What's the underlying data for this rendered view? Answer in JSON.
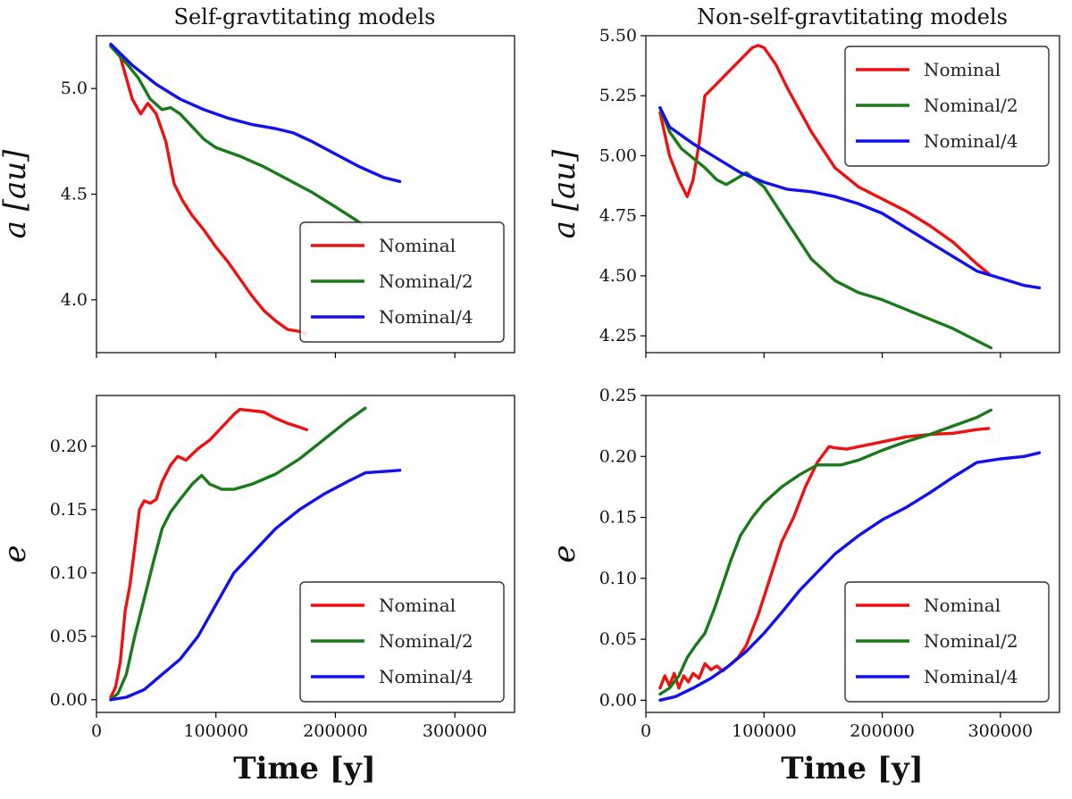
{
  "colors": {
    "Nominal": "#ee1111",
    "Nominal/2": "#1a7a1a",
    "Nominal/4": "#1111ee"
  },
  "titles": [
    "Self-gravtitating models",
    "Non-self-gravtitating models"
  ],
  "xlabel": "Time [y]",
  "chart_data": [
    {
      "type": "line",
      "title": "Self-gravtitating models",
      "ylabel": "a [au]",
      "xlim": [
        0,
        350000
      ],
      "ylim": [
        3.75,
        5.25
      ],
      "xticks": [
        0,
        100000,
        200000,
        300000
      ],
      "yticks": [
        4.0,
        4.5,
        5.0
      ],
      "ytick_labels": [
        "4.0",
        "4.5",
        "5.0"
      ],
      "legend": "lower-right",
      "series": [
        {
          "name": "Nominal",
          "x": [
            12000,
            20000,
            30000,
            37000,
            43000,
            50000,
            58000,
            65000,
            72000,
            80000,
            90000,
            100000,
            110000,
            120000,
            130000,
            140000,
            150000,
            160000,
            170000,
            175000
          ],
          "y": [
            5.2,
            5.15,
            4.95,
            4.88,
            4.93,
            4.88,
            4.75,
            4.55,
            4.47,
            4.4,
            4.33,
            4.25,
            4.18,
            4.1,
            4.02,
            3.95,
            3.9,
            3.86,
            3.85,
            3.84
          ]
        },
        {
          "name": "Nominal/2",
          "x": [
            12000,
            25000,
            35000,
            45000,
            55000,
            62000,
            70000,
            80000,
            90000,
            100000,
            120000,
            140000,
            160000,
            180000,
            200000,
            222000
          ],
          "y": [
            5.2,
            5.12,
            5.05,
            4.95,
            4.9,
            4.91,
            4.88,
            4.82,
            4.76,
            4.72,
            4.68,
            4.63,
            4.57,
            4.51,
            4.44,
            4.36
          ]
        },
        {
          "name": "Nominal/4",
          "x": [
            12000,
            30000,
            50000,
            70000,
            90000,
            110000,
            130000,
            150000,
            165000,
            180000,
            200000,
            220000,
            240000,
            254000
          ],
          "y": [
            5.21,
            5.11,
            5.02,
            4.95,
            4.9,
            4.86,
            4.83,
            4.81,
            4.79,
            4.75,
            4.69,
            4.63,
            4.58,
            4.56
          ]
        }
      ]
    },
    {
      "type": "line",
      "title": "Non-self-gravtitating models",
      "ylabel": "a [au]",
      "xlim": [
        0,
        350000
      ],
      "ylim": [
        4.18,
        5.5
      ],
      "xticks": [
        0,
        100000,
        200000,
        300000
      ],
      "yticks": [
        4.25,
        4.5,
        4.75,
        5.0,
        5.25,
        5.5
      ],
      "ytick_labels": [
        "4.25",
        "4.50",
        "4.75",
        "5.00",
        "5.25",
        "5.50"
      ],
      "legend": "top-right",
      "series": [
        {
          "name": "Nominal",
          "x": [
            12000,
            20000,
            28000,
            35000,
            40000,
            45000,
            50000,
            60000,
            70000,
            80000,
            90000,
            95000,
            100000,
            110000,
            120000,
            140000,
            160000,
            180000,
            200000,
            220000,
            240000,
            260000,
            280000,
            290000
          ],
          "y": [
            5.18,
            5.0,
            4.9,
            4.83,
            4.9,
            5.05,
            5.25,
            5.3,
            5.35,
            5.4,
            5.45,
            5.46,
            5.45,
            5.38,
            5.28,
            5.1,
            4.95,
            4.87,
            4.82,
            4.77,
            4.71,
            4.64,
            4.55,
            4.51
          ]
        },
        {
          "name": "Nominal/2",
          "x": [
            12000,
            20000,
            30000,
            40000,
            50000,
            60000,
            68000,
            75000,
            85000,
            100000,
            120000,
            140000,
            160000,
            180000,
            200000,
            220000,
            240000,
            260000,
            280000,
            292000
          ],
          "y": [
            5.2,
            5.1,
            5.03,
            4.99,
            4.95,
            4.9,
            4.88,
            4.9,
            4.93,
            4.87,
            4.72,
            4.57,
            4.48,
            4.43,
            4.4,
            4.36,
            4.32,
            4.28,
            4.23,
            4.2
          ]
        },
        {
          "name": "Nominal/4",
          "x": [
            12000,
            20000,
            40000,
            60000,
            80000,
            100000,
            120000,
            140000,
            160000,
            180000,
            200000,
            220000,
            240000,
            260000,
            280000,
            300000,
            320000,
            333000
          ],
          "y": [
            5.2,
            5.12,
            5.05,
            4.99,
            4.93,
            4.89,
            4.86,
            4.85,
            4.83,
            4.8,
            4.76,
            4.7,
            4.64,
            4.58,
            4.52,
            4.49,
            4.46,
            4.45
          ]
        }
      ]
    },
    {
      "type": "line",
      "ylabel": "e",
      "xlim": [
        0,
        350000
      ],
      "ylim": [
        -0.01,
        0.24
      ],
      "xticks": [
        0,
        100000,
        200000,
        300000
      ],
      "xtick_labels": [
        "0",
        "100000",
        "200000",
        "300000"
      ],
      "yticks": [
        0.0,
        0.05,
        0.1,
        0.15,
        0.2
      ],
      "ytick_labels": [
        "0.00",
        "0.05",
        "0.10",
        "0.15",
        "0.20"
      ],
      "legend": "lower-right",
      "series": [
        {
          "name": "Nominal",
          "x": [
            12000,
            16000,
            20000,
            24000,
            28000,
            32000,
            36000,
            40000,
            45000,
            50000,
            55000,
            62000,
            68000,
            75000,
            85000,
            95000,
            105000,
            115000,
            120000,
            130000,
            140000,
            150000,
            160000,
            170000,
            176000
          ],
          "y": [
            0.002,
            0.01,
            0.03,
            0.07,
            0.09,
            0.12,
            0.15,
            0.157,
            0.155,
            0.158,
            0.172,
            0.185,
            0.192,
            0.189,
            0.198,
            0.205,
            0.215,
            0.225,
            0.229,
            0.228,
            0.227,
            0.222,
            0.218,
            0.215,
            0.213
          ]
        },
        {
          "name": "Nominal/2",
          "x": [
            12000,
            18000,
            25000,
            32000,
            40000,
            48000,
            55000,
            62000,
            70000,
            80000,
            88000,
            95000,
            105000,
            115000,
            130000,
            150000,
            170000,
            190000,
            210000,
            225000
          ],
          "y": [
            0.0,
            0.005,
            0.02,
            0.05,
            0.08,
            0.11,
            0.135,
            0.148,
            0.158,
            0.17,
            0.177,
            0.17,
            0.166,
            0.166,
            0.17,
            0.178,
            0.19,
            0.205,
            0.22,
            0.23
          ]
        },
        {
          "name": "Nominal/4",
          "x": [
            12000,
            25000,
            40000,
            55000,
            70000,
            85000,
            100000,
            115000,
            135000,
            150000,
            170000,
            190000,
            210000,
            225000,
            240000,
            254000
          ],
          "y": [
            0.0,
            0.002,
            0.008,
            0.02,
            0.032,
            0.05,
            0.075,
            0.1,
            0.12,
            0.135,
            0.15,
            0.162,
            0.172,
            0.179,
            0.18,
            0.181
          ]
        }
      ]
    },
    {
      "type": "line",
      "ylabel": "e",
      "xlim": [
        0,
        350000
      ],
      "ylim": [
        -0.01,
        0.25
      ],
      "xticks": [
        0,
        100000,
        200000,
        300000
      ],
      "xtick_labels": [
        "0",
        "100000",
        "200000",
        "300000"
      ],
      "yticks": [
        0.0,
        0.05,
        0.1,
        0.15,
        0.2,
        0.25
      ],
      "ytick_labels": [
        "0.00",
        "0.05",
        "0.10",
        "0.15",
        "0.20",
        "0.25"
      ],
      "legend": "lower-right",
      "series": [
        {
          "name": "Nominal",
          "x": [
            12000,
            16000,
            20000,
            24000,
            28000,
            32000,
            36000,
            40000,
            45000,
            50000,
            55000,
            60000,
            65000,
            70000,
            78000,
            85000,
            95000,
            105000,
            115000,
            125000,
            135000,
            145000,
            155000,
            160000,
            170000,
            180000,
            200000,
            220000,
            240000,
            260000,
            280000,
            290000
          ],
          "y": [
            0.01,
            0.02,
            0.012,
            0.022,
            0.01,
            0.02,
            0.015,
            0.022,
            0.018,
            0.03,
            0.025,
            0.028,
            0.024,
            0.028,
            0.035,
            0.045,
            0.07,
            0.1,
            0.13,
            0.15,
            0.175,
            0.195,
            0.208,
            0.207,
            0.206,
            0.208,
            0.212,
            0.216,
            0.218,
            0.219,
            0.222,
            0.223
          ]
        },
        {
          "name": "Nominal/2",
          "x": [
            12000,
            20000,
            28000,
            35000,
            42000,
            50000,
            58000,
            65000,
            72000,
            80000,
            90000,
            100000,
            115000,
            130000,
            145000,
            155000,
            165000,
            180000,
            200000,
            220000,
            240000,
            260000,
            280000,
            292000
          ],
          "y": [
            0.005,
            0.01,
            0.02,
            0.035,
            0.045,
            0.055,
            0.075,
            0.095,
            0.115,
            0.135,
            0.15,
            0.162,
            0.175,
            0.185,
            0.193,
            0.193,
            0.193,
            0.197,
            0.205,
            0.212,
            0.218,
            0.225,
            0.232,
            0.238
          ]
        },
        {
          "name": "Nominal/4",
          "x": [
            12000,
            25000,
            40000,
            55000,
            70000,
            85000,
            100000,
            115000,
            130000,
            145000,
            160000,
            180000,
            200000,
            220000,
            240000,
            260000,
            280000,
            300000,
            320000,
            333000
          ],
          "y": [
            0.0,
            0.003,
            0.01,
            0.018,
            0.028,
            0.04,
            0.055,
            0.072,
            0.09,
            0.105,
            0.12,
            0.135,
            0.148,
            0.158,
            0.17,
            0.183,
            0.195,
            0.198,
            0.2,
            0.203
          ]
        }
      ]
    }
  ]
}
